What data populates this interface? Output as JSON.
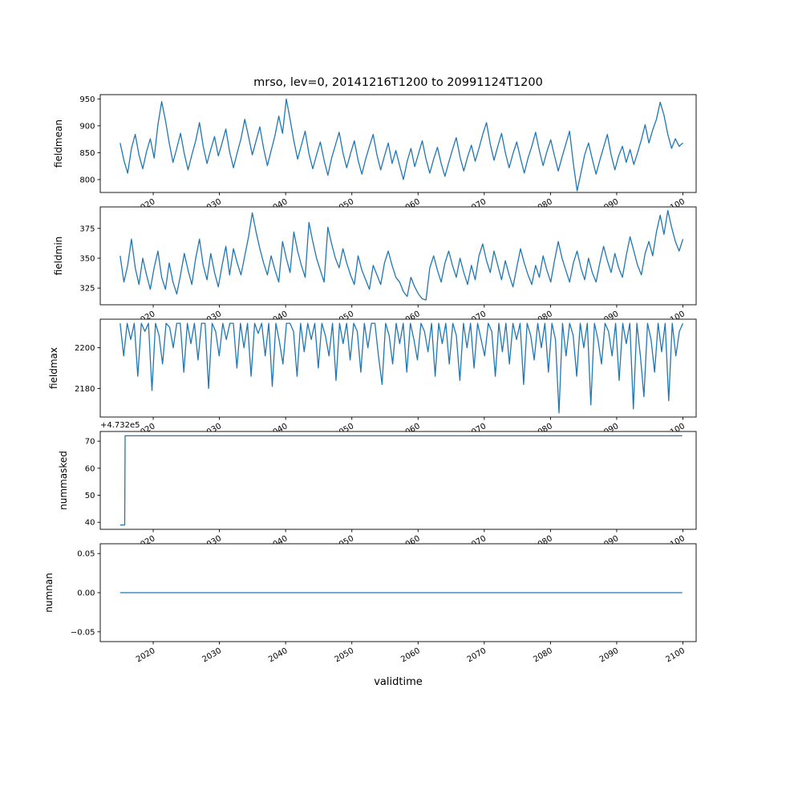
{
  "chart_data": {
    "type": "line",
    "title": "mrso, lev=0, 20141216T1200 to 20991124T1200",
    "xlabel": "validtime",
    "line_color": "#1f77b4",
    "legend": "none",
    "grid": false,
    "x_axis": {
      "lim": [
        2012,
        2102
      ],
      "ticks": {
        "values": [
          2020,
          2030,
          2040,
          2050,
          2060,
          2070,
          2080,
          2090,
          2100
        ],
        "labels": [
          "2020",
          "2030",
          "2040",
          "2050",
          "2060",
          "2070",
          "2080",
          "2090",
          "2100"
        ]
      }
    },
    "subplots": [
      {
        "name": "fieldmean",
        "ylabel": "fieldmean",
        "ylim": [
          776,
          958
        ],
        "yticks": {
          "values": [
            800,
            850,
            900,
            950
          ],
          "labels": [
            "800",
            "850",
            "900",
            "950"
          ]
        },
        "x_range": [
          2015,
          2100
        ],
        "values": [
          868,
          836,
          812,
          858,
          884,
          846,
          820,
          852,
          876,
          840,
          902,
          945,
          910,
          868,
          832,
          858,
          886,
          848,
          818,
          846,
          872,
          906,
          862,
          830,
          856,
          880,
          844,
          868,
          894,
          852,
          822,
          850,
          876,
          912,
          880,
          846,
          872,
          898,
          858,
          826,
          854,
          882,
          918,
          886,
          950,
          912,
          872,
          838,
          864,
          890,
          848,
          820,
          846,
          870,
          836,
          808,
          840,
          864,
          888,
          850,
          822,
          848,
          872,
          836,
          810,
          838,
          862,
          884,
          846,
          818,
          844,
          868,
          830,
          854,
          826,
          800,
          834,
          858,
          824,
          848,
          872,
          838,
          812,
          838,
          860,
          830,
          806,
          832,
          856,
          878,
          842,
          816,
          842,
          864,
          834,
          858,
          884,
          906,
          866,
          836,
          862,
          886,
          850,
          822,
          848,
          870,
          840,
          812,
          840,
          862,
          888,
          854,
          826,
          852,
          874,
          844,
          816,
          842,
          866,
          890,
          830,
          779,
          812,
          846,
          868,
          838,
          810,
          836,
          860,
          884,
          846,
          818,
          844,
          862,
          832,
          856,
          828,
          850,
          874,
          902,
          868,
          892,
          912,
          944,
          920,
          884,
          858,
          876,
          862,
          868
        ]
      },
      {
        "name": "fieldmin",
        "ylabel": "fieldmin",
        "ylim": [
          311,
          393
        ],
        "yticks": {
          "values": [
            325,
            350,
            375
          ],
          "labels": [
            "325",
            "350",
            "375"
          ]
        },
        "x_range": [
          2015,
          2100
        ],
        "values": [
          352,
          330,
          344,
          366,
          342,
          328,
          350,
          336,
          324,
          342,
          356,
          334,
          324,
          346,
          330,
          320,
          336,
          354,
          340,
          328,
          350,
          366,
          344,
          332,
          354,
          338,
          326,
          344,
          360,
          336,
          358,
          346,
          336,
          352,
          368,
          388,
          372,
          358,
          346,
          336,
          352,
          340,
          330,
          364,
          350,
          338,
          372,
          356,
          344,
          334,
          380,
          364,
          350,
          340,
          330,
          376,
          362,
          350,
          342,
          358,
          346,
          336,
          328,
          352,
          340,
          332,
          324,
          344,
          336,
          328,
          346,
          356,
          344,
          334,
          330,
          322,
          318,
          334,
          326,
          320,
          316,
          315,
          342,
          352,
          340,
          330,
          346,
          356,
          344,
          334,
          350,
          338,
          328,
          344,
          332,
          352,
          362,
          348,
          338,
          356,
          344,
          332,
          348,
          336,
          326,
          342,
          358,
          346,
          336,
          328,
          344,
          334,
          352,
          340,
          330,
          348,
          364,
          350,
          340,
          330,
          346,
          356,
          342,
          332,
          350,
          338,
          330,
          346,
          360,
          348,
          338,
          354,
          342,
          334,
          352,
          368,
          356,
          344,
          336,
          354,
          364,
          352,
          372,
          386,
          370,
          390,
          376,
          364,
          356,
          366
        ]
      },
      {
        "name": "fieldmax",
        "ylabel": "fieldmax",
        "ylim": [
          2166,
          2214
        ],
        "yticks": {
          "values": [
            2180,
            2200
          ],
          "labels": [
            "2180",
            "2200"
          ]
        },
        "x_range": [
          2015,
          2100
        ],
        "values": [
          2212,
          2196,
          2212,
          2204,
          2212,
          2186,
          2212,
          2208,
          2212,
          2179,
          2212,
          2206,
          2192,
          2212,
          2210,
          2200,
          2212,
          2212,
          2188,
          2212,
          2202,
          2212,
          2194,
          2212,
          2212,
          2180,
          2212,
          2208,
          2196,
          2212,
          2204,
          2212,
          2212,
          2190,
          2212,
          2200,
          2212,
          2186,
          2212,
          2207,
          2212,
          2196,
          2212,
          2181,
          2212,
          2203,
          2192,
          2212,
          2212,
          2208,
          2186,
          2212,
          2198,
          2212,
          2204,
          2212,
          2190,
          2212,
          2206,
          2196,
          2212,
          2184,
          2212,
          2202,
          2212,
          2194,
          2212,
          2208,
          2188,
          2212,
          2200,
          2212,
          2212,
          2196,
          2182,
          2212,
          2206,
          2192,
          2212,
          2202,
          2212,
          2188,
          2212,
          2204,
          2194,
          2212,
          2208,
          2198,
          2212,
          2186,
          2212,
          2202,
          2212,
          2192,
          2212,
          2206,
          2184,
          2212,
          2200,
          2212,
          2190,
          2212,
          2204,
          2196,
          2212,
          2208,
          2186,
          2212,
          2198,
          2212,
          2192,
          2212,
          2204,
          2212,
          2182,
          2212,
          2206,
          2194,
          2212,
          2200,
          2212,
          2188,
          2212,
          2204,
          2168,
          2212,
          2196,
          2212,
          2206,
          2186,
          2212,
          2200,
          2212,
          2172,
          2212,
          2204,
          2192,
          2212,
          2208,
          2196,
          2212,
          2184,
          2212,
          2202,
          2212,
          2170,
          2212,
          2196,
          2176,
          2212,
          2204,
          2188,
          2212,
          2198,
          2212,
          2174,
          2212,
          2196,
          2208,
          2212
        ]
      },
      {
        "name": "nummasked",
        "ylabel": "nummasked",
        "offset_text": "+4.732e5",
        "ylim": [
          37.4,
          73.6
        ],
        "yticks": {
          "values": [
            40,
            50,
            60,
            70
          ],
          "labels": [
            "40",
            "50",
            "60",
            "70"
          ]
        },
        "points": [
          [
            2015.0,
            39
          ],
          [
            2015.7,
            39
          ],
          [
            2015.75,
            72
          ],
          [
            2099.9,
            72
          ]
        ]
      },
      {
        "name": "numnan",
        "ylabel": "numnan",
        "ylim": [
          -0.0625,
          0.0625
        ],
        "yticks": {
          "values": [
            -0.05,
            0.0,
            0.05
          ],
          "labels": [
            "−0.05",
            "0.00",
            "0.05"
          ]
        },
        "points": [
          [
            2015.0,
            0.0
          ],
          [
            2099.9,
            0.0
          ]
        ]
      }
    ]
  }
}
